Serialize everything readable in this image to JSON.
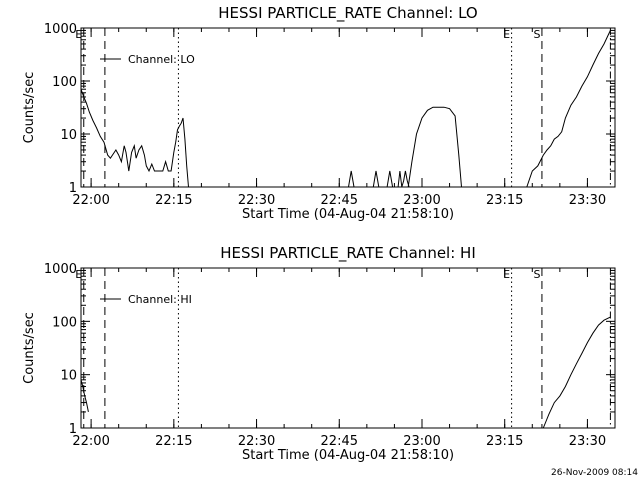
{
  "chart_data": [
    {
      "type": "line",
      "title": "HESSI PARTICLE_RATE Channel: LO",
      "xlabel": "Start Time (04-Aug-04 21:58:10)",
      "ylabel": "Counts/sec",
      "y_scale": "log",
      "ylim": [
        1,
        1000
      ],
      "xlim": [
        "21:58:10",
        "23:35:00"
      ],
      "yticks": [
        "1",
        "10",
        "100",
        "1000"
      ],
      "xticks": [
        "22:00",
        "22:15",
        "22:30",
        "22:45",
        "23:00",
        "23:15",
        "23:30"
      ],
      "legend": "Channel: LO",
      "marker_labels": [
        "E",
        "E",
        "S"
      ],
      "markers": [
        {
          "time": "21:58:40",
          "style": "dashed",
          "label": "E"
        },
        {
          "time": "22:02:30",
          "style": "dashed"
        },
        {
          "time": "22:15:50",
          "style": "dotted"
        },
        {
          "time": "23:16:15",
          "style": "dotted",
          "label": "E"
        },
        {
          "time": "23:21:45",
          "style": "dashed",
          "label": "S"
        },
        {
          "time": "23:34:10",
          "style": "dashdot"
        }
      ],
      "series": [
        {
          "name": "Channel: LO",
          "segments": [
            {
              "x": [
                "21:58:10",
                "21:58:40",
                "21:59:10",
                "21:59:40",
                "22:00:20",
                "22:01:00",
                "22:01:40",
                "22:02:20",
                "22:03:00",
                "22:03:30",
                "22:04:00",
                "22:04:30",
                "22:05:00",
                "22:05:30",
                "22:06:00",
                "22:06:20",
                "22:06:50",
                "22:07:20",
                "22:07:50",
                "22:08:10",
                "22:08:40",
                "22:09:10",
                "22:09:40",
                "22:10:00",
                "22:10:30",
                "22:11:00",
                "22:11:30",
                "22:12:00",
                "22:12:30",
                "22:13:00",
                "22:13:30",
                "22:14:00",
                "22:14:30",
                "22:15:00",
                "22:15:20",
                "22:15:40",
                "22:16:00",
                "22:16:20",
                "22:16:40",
                "22:17:00",
                "22:17:20",
                "22:17:40"
              ],
              "y": [
                70,
                50,
                38,
                26,
                18,
                13,
                9,
                7,
                4,
                3.5,
                4.2,
                5,
                4,
                3,
                6,
                4.5,
                2,
                4.5,
                6,
                3.5,
                5,
                6,
                4,
                2.5,
                2,
                2.7,
                2,
                2,
                2,
                2,
                3,
                2,
                2,
                4.5,
                7,
                12,
                14,
                16,
                20,
                8,
                2.5,
                1
              ]
            },
            {
              "x": [
                "22:46:40",
                "22:47:10",
                "22:47:40"
              ],
              "y": [
                1,
                2,
                1
              ]
            },
            {
              "x": [
                "22:51:10",
                "22:51:40",
                "22:52:10"
              ],
              "y": [
                1,
                2,
                1
              ]
            },
            {
              "x": [
                "22:53:40",
                "22:54:10",
                "22:54:40"
              ],
              "y": [
                1,
                2,
                1
              ]
            },
            {
              "x": [
                "22:55:40",
                "22:56:00",
                "22:56:20",
                "22:56:40",
                "22:57:00",
                "22:57:20",
                "22:57:40"
              ],
              "y": [
                1,
                2,
                1,
                1.3,
                2,
                1.3,
                1
              ]
            },
            {
              "x": [
                "22:57:30",
                "22:58:10",
                "22:59:00",
                "23:00:00",
                "23:01:00",
                "23:02:00",
                "23:03:00",
                "23:04:00",
                "23:05:00",
                "23:06:00",
                "23:06:40",
                "23:07:10"
              ],
              "y": [
                1,
                3,
                10,
                20,
                28,
                32,
                32,
                32,
                30,
                22,
                4,
                1
              ]
            },
            {
              "x": [
                "23:19:00",
                "23:20:00",
                "23:21:00",
                "23:22:00",
                "23:22:40",
                "23:23:20",
                "23:24:00",
                "23:24:40",
                "23:25:20",
                "23:26:00",
                "23:27:00",
                "23:28:00",
                "23:29:00",
                "23:30:00",
                "23:31:00",
                "23:32:00",
                "23:33:00",
                "23:34:10"
              ],
              "y": [
                1,
                2,
                2.5,
                4,
                5,
                6,
                8,
                9,
                11,
                20,
                35,
                50,
                80,
                120,
                200,
                330,
                500,
                900
              ]
            }
          ]
        }
      ]
    },
    {
      "type": "line",
      "title": "HESSI PARTICLE_RATE Channel: HI",
      "xlabel": "Start Time (04-Aug-04 21:58:10)",
      "ylabel": "Counts/sec",
      "y_scale": "log",
      "ylim": [
        1,
        1000
      ],
      "xlim": [
        "21:58:10",
        "23:35:00"
      ],
      "yticks": [
        "1",
        "10",
        "100",
        "1000"
      ],
      "xticks": [
        "22:00",
        "22:15",
        "22:30",
        "22:45",
        "23:00",
        "23:15",
        "23:30"
      ],
      "legend": "Channel: HI",
      "marker_labels": [
        "E",
        "E",
        "S"
      ],
      "markers": [
        {
          "time": "21:58:40",
          "style": "dashed",
          "label": "E"
        },
        {
          "time": "22:02:30",
          "style": "dashed"
        },
        {
          "time": "22:15:50",
          "style": "dotted"
        },
        {
          "time": "23:16:15",
          "style": "dotted",
          "label": "E"
        },
        {
          "time": "23:21:45",
          "style": "dashed",
          "label": "S"
        },
        {
          "time": "23:34:10",
          "style": "dashdot"
        }
      ],
      "series": [
        {
          "name": "Channel: HI",
          "segments": [
            {
              "x": [
                "21:58:10",
                "21:58:30",
                "21:58:50",
                "21:59:10",
                "21:59:30"
              ],
              "y": [
                8,
                6,
                4,
                3,
                2
              ]
            },
            {
              "x": [
                "23:22:00",
                "23:23:00",
                "23:24:00",
                "23:25:00",
                "23:26:00",
                "23:27:00",
                "23:28:00",
                "23:29:00",
                "23:30:00",
                "23:31:00",
                "23:32:00",
                "23:33:00",
                "23:34:10"
              ],
              "y": [
                1,
                1.8,
                3,
                4,
                6,
                10,
                16,
                25,
                40,
                60,
                85,
                105,
                120
              ]
            }
          ]
        }
      ]
    }
  ],
  "footer": {
    "timestamp": "26-Nov-2009 08:14"
  }
}
